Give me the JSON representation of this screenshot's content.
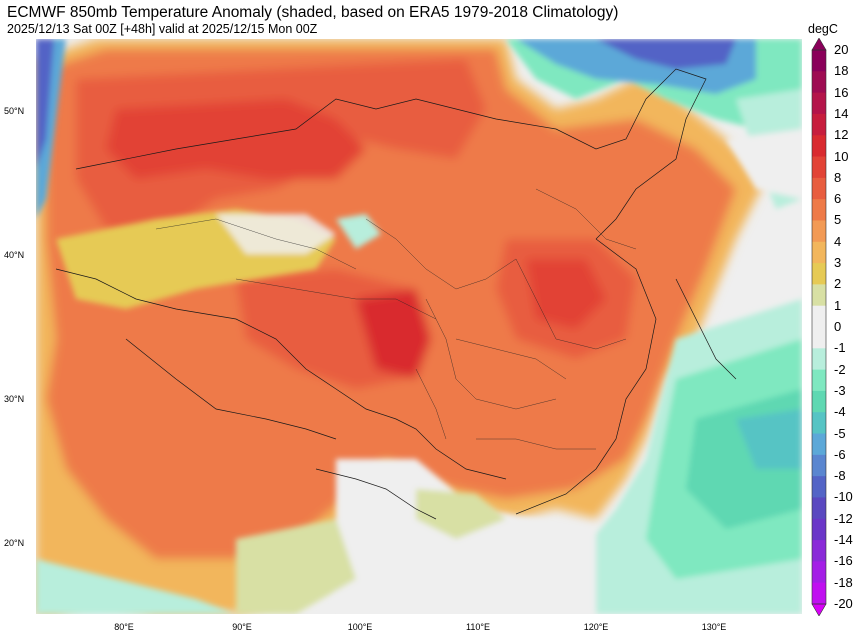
{
  "title": "ECMWF 850mb Temperature Anomaly (shaded, based on ERA5 1979-2018 Climatology)",
  "subtitle": "2025/12/13 Sat 00Z [+48h] valid at 2025/12/15 Mon 00Z",
  "map": {
    "lat_labels": [
      "50°N",
      "40°N",
      "30°N",
      "20°N"
    ],
    "lon_labels": [
      "80°E",
      "90°E",
      "100°E",
      "110°E",
      "120°E",
      "130°E"
    ]
  },
  "colorbar": {
    "unit": "degC",
    "levels": [
      {
        "label": "20",
        "color": "#8a005a"
      },
      {
        "label": "18",
        "color": "#9e0b52"
      },
      {
        "label": "16",
        "color": "#b4144a"
      },
      {
        "label": "14",
        "color": "#c71d3d"
      },
      {
        "label": "12",
        "color": "#d92a2f"
      },
      {
        "label": "10",
        "color": "#e24336"
      },
      {
        "label": "8",
        "color": "#e85d3f"
      },
      {
        "label": "6",
        "color": "#ee7a48"
      },
      {
        "label": "5",
        "color": "#f29a55"
      },
      {
        "label": "4",
        "color": "#f2b65c"
      },
      {
        "label": "3",
        "color": "#e6ca55"
      },
      {
        "label": "2",
        "color": "#d8e0a4"
      },
      {
        "label": "1",
        "color": "#efefef"
      },
      {
        "label": "0",
        "color": "#efefef"
      },
      {
        "label": "-1",
        "color": "#b8eedc"
      },
      {
        "label": "-2",
        "color": "#7fe8c0"
      },
      {
        "label": "-3",
        "color": "#5fd8b2"
      },
      {
        "label": "-4",
        "color": "#56c4c4"
      },
      {
        "label": "-5",
        "color": "#5ca8d8"
      },
      {
        "label": "-6",
        "color": "#5a86d0"
      },
      {
        "label": "-8",
        "color": "#5364c6"
      },
      {
        "label": "-10",
        "color": "#5a48c0"
      },
      {
        "label": "-12",
        "color": "#6a36c8"
      },
      {
        "label": "-14",
        "color": "#8a2ad8"
      },
      {
        "label": "-16",
        "color": "#a41ee6"
      },
      {
        "label": "-18",
        "color": "#c010f0"
      },
      {
        "label": "-20",
        "color": "#d800f8"
      }
    ]
  }
}
